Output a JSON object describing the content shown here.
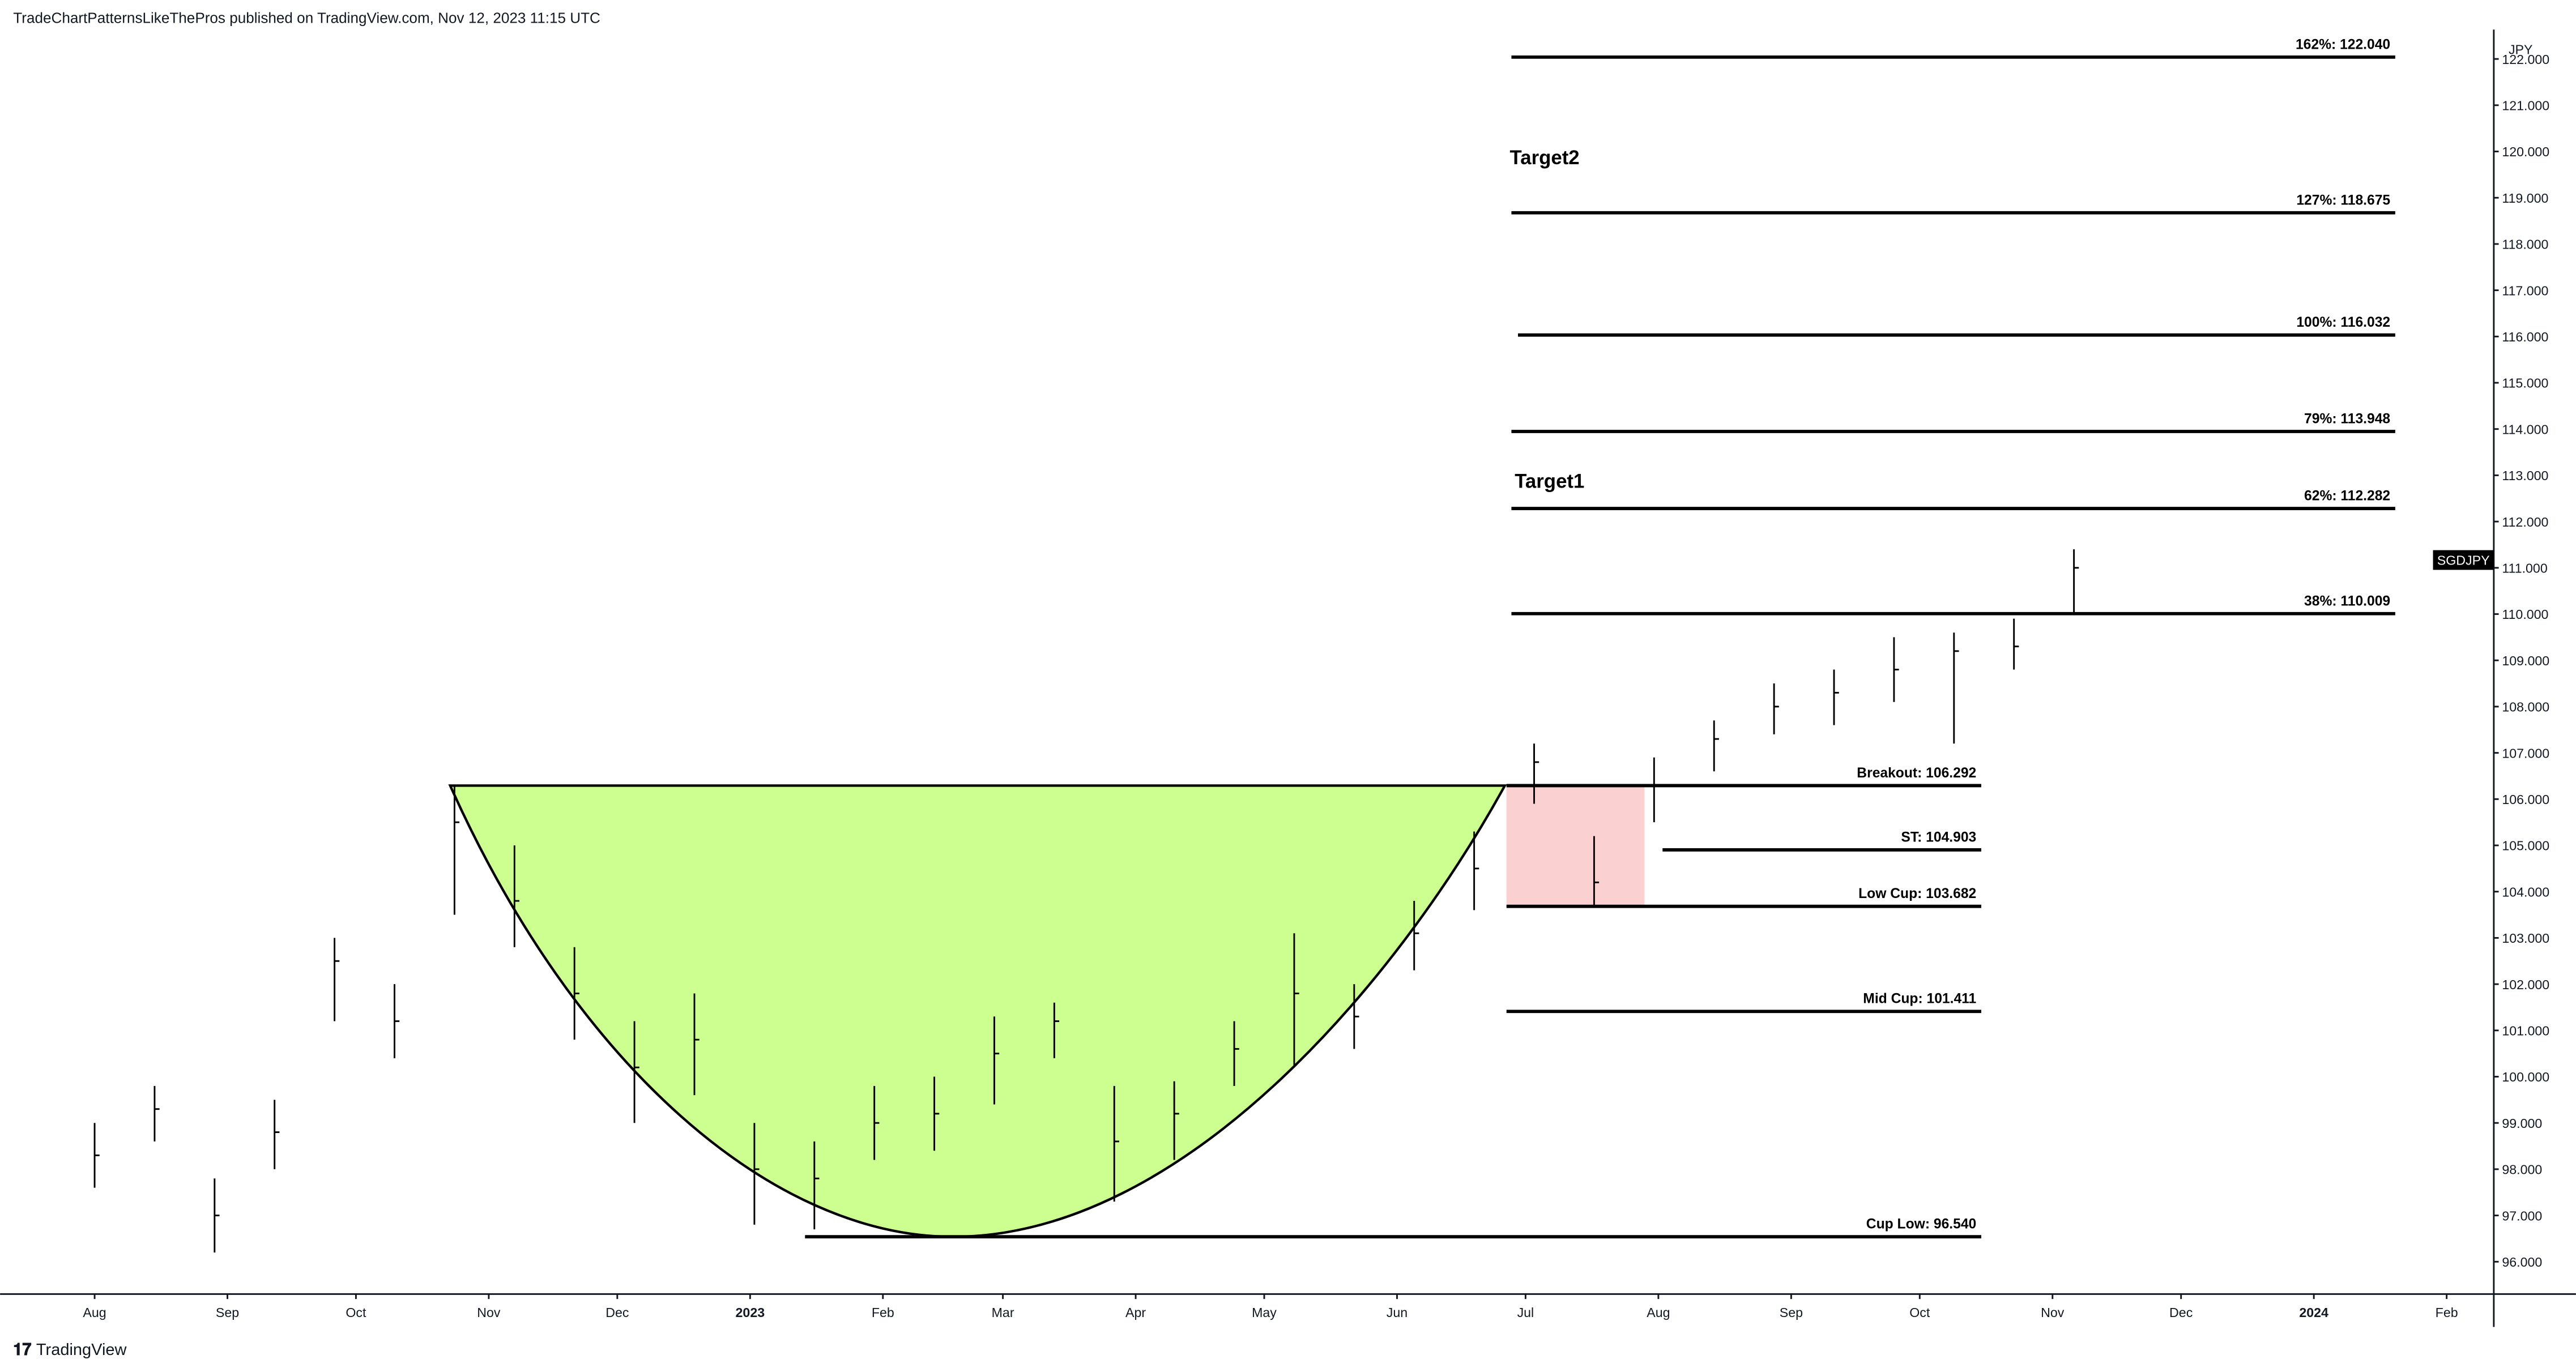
{
  "header": "TradeChartPatternsLikeThePros published on TradingView.com, Nov 12, 2023 11:15 UTC",
  "footer": "TradingView",
  "chart_data": {
    "type": "ohlc",
    "symbol": "SGDJPY",
    "currency": "JPY",
    "xlim": [
      "2022-07-13",
      "2024-02-12"
    ],
    "xticks": [
      {
        "value": "2022-08-01",
        "label": "Aug"
      },
      {
        "value": "2022-09-01",
        "label": "Sep"
      },
      {
        "value": "2022-10-01",
        "label": "Oct"
      },
      {
        "value": "2022-11-01",
        "label": "Nov"
      },
      {
        "value": "2022-12-01",
        "label": "Dec"
      },
      {
        "value": "2023-01-01",
        "label": "2023"
      },
      {
        "value": "2023-02-01",
        "label": "Feb"
      },
      {
        "value": "2023-03-01",
        "label": "Mar"
      },
      {
        "value": "2023-04-01",
        "label": "Apr"
      },
      {
        "value": "2023-05-01",
        "label": "May"
      },
      {
        "value": "2023-06-01",
        "label": "Jun"
      },
      {
        "value": "2023-07-01",
        "label": "Jul"
      },
      {
        "value": "2023-08-01",
        "label": "Aug"
      },
      {
        "value": "2023-09-01",
        "label": "Sep"
      },
      {
        "value": "2023-10-01",
        "label": "Oct"
      },
      {
        "value": "2023-11-01",
        "label": "Nov"
      },
      {
        "value": "2023-12-01",
        "label": "Dec"
      },
      {
        "value": "2024-01-01",
        "label": "2024"
      },
      {
        "value": "2024-02-01",
        "label": "Feb"
      }
    ],
    "ylim": [
      95.3,
      122.6
    ],
    "yticks": [
      {
        "value": 96,
        "label": "96.000"
      },
      {
        "value": 97,
        "label": "97.000"
      },
      {
        "value": 98,
        "label": "98.000"
      },
      {
        "value": 99,
        "label": "99.000"
      },
      {
        "value": 100,
        "label": "100.000"
      },
      {
        "value": 101,
        "label": "101.000"
      },
      {
        "value": 102,
        "label": "102.000"
      },
      {
        "value": 103,
        "label": "103.000"
      },
      {
        "value": 104,
        "label": "104.000"
      },
      {
        "value": 105,
        "label": "105.000"
      },
      {
        "value": 106,
        "label": "106.000"
      },
      {
        "value": 107,
        "label": "107.000"
      },
      {
        "value": 108,
        "label": "108.000"
      },
      {
        "value": 109,
        "label": "109.000"
      },
      {
        "value": 110,
        "label": "110.000"
      },
      {
        "value": 111,
        "label": "111.000"
      },
      {
        "value": 112,
        "label": "112.000"
      },
      {
        "value": 113,
        "label": "113.000"
      },
      {
        "value": 114,
        "label": "114.000"
      },
      {
        "value": 115,
        "label": "115.000"
      },
      {
        "value": 116,
        "label": "116.000"
      },
      {
        "value": 117,
        "label": "117.000"
      },
      {
        "value": 118,
        "label": "118.000"
      },
      {
        "value": 119,
        "label": "119.000"
      },
      {
        "value": 120,
        "label": "120.000"
      },
      {
        "value": 121,
        "label": "121.000"
      },
      {
        "value": 122,
        "label": "122.000"
      }
    ],
    "color": "#000000",
    "x": [
      "2022-08-01",
      "2022-08-15",
      "2022-08-29",
      "2022-09-12",
      "2022-09-26",
      "2022-10-10",
      "2022-10-24",
      "2022-11-07",
      "2022-11-21",
      "2022-12-05",
      "2022-12-19",
      "2023-01-02",
      "2023-01-16",
      "2023-01-30",
      "2023-02-13",
      "2023-02-27",
      "2023-03-13",
      "2023-03-27",
      "2023-04-10",
      "2023-04-24",
      "2023-05-08",
      "2023-05-22",
      "2023-06-05",
      "2023-06-19",
      "2023-07-03",
      "2023-07-17",
      "2023-07-31",
      "2023-08-14",
      "2023-08-28",
      "2023-09-11",
      "2023-09-25",
      "2023-10-09",
      "2023-10-23",
      "2023-11-06"
    ],
    "high": [
      99.0,
      99.8,
      97.8,
      99.5,
      103.0,
      102.0,
      106.3,
      105.0,
      102.8,
      101.2,
      101.8,
      99.0,
      98.6,
      99.8,
      100.0,
      101.3,
      101.6,
      99.8,
      99.9,
      101.2,
      103.1,
      102.0,
      103.8,
      105.3,
      107.2,
      105.2,
      106.9,
      107.7,
      108.5,
      108.8,
      109.5,
      109.6,
      109.9,
      111.4
    ],
    "low": [
      97.6,
      98.6,
      96.2,
      98.0,
      101.2,
      100.4,
      103.5,
      102.8,
      100.8,
      99.0,
      99.6,
      96.8,
      96.7,
      98.2,
      98.4,
      99.4,
      100.4,
      97.3,
      98.2,
      99.8,
      100.2,
      100.6,
      102.3,
      103.6,
      105.9,
      103.7,
      105.5,
      106.6,
      107.4,
      107.6,
      108.1,
      107.2,
      108.8,
      110.0
    ],
    "close": [
      98.3,
      99.3,
      97.0,
      98.8,
      102.5,
      101.2,
      105.5,
      103.8,
      101.8,
      100.2,
      100.8,
      98.0,
      97.8,
      99.0,
      99.2,
      100.5,
      101.2,
      98.6,
      99.2,
      100.6,
      101.8,
      101.3,
      103.1,
      104.5,
      106.8,
      104.2,
      106.3,
      107.3,
      108.0,
      108.3,
      108.8,
      109.2,
      109.3,
      111.0
    ],
    "levels": [
      {
        "label": "162%: 122.040",
        "value": 122.04
      },
      {
        "label": "127%: 118.675",
        "value": 118.675
      },
      {
        "label": "100%: 116.032",
        "value": 116.032
      },
      {
        "label": "79%: 113.948",
        "value": 113.948
      },
      {
        "label": "62%: 112.282",
        "value": 112.282
      },
      {
        "label": "38%: 110.009",
        "value": 110.009
      },
      {
        "label": "Breakout: 106.292",
        "value": 106.292
      },
      {
        "label": "ST: 104.903",
        "value": 104.903
      },
      {
        "label": "Low Cup: 103.682",
        "value": 103.682
      },
      {
        "label": "Mid Cup: 101.411",
        "value": 101.411
      },
      {
        "label": "Cup Low: 96.540",
        "value": 96.54
      }
    ],
    "annotations": [
      "Target2",
      "Target1"
    ]
  }
}
